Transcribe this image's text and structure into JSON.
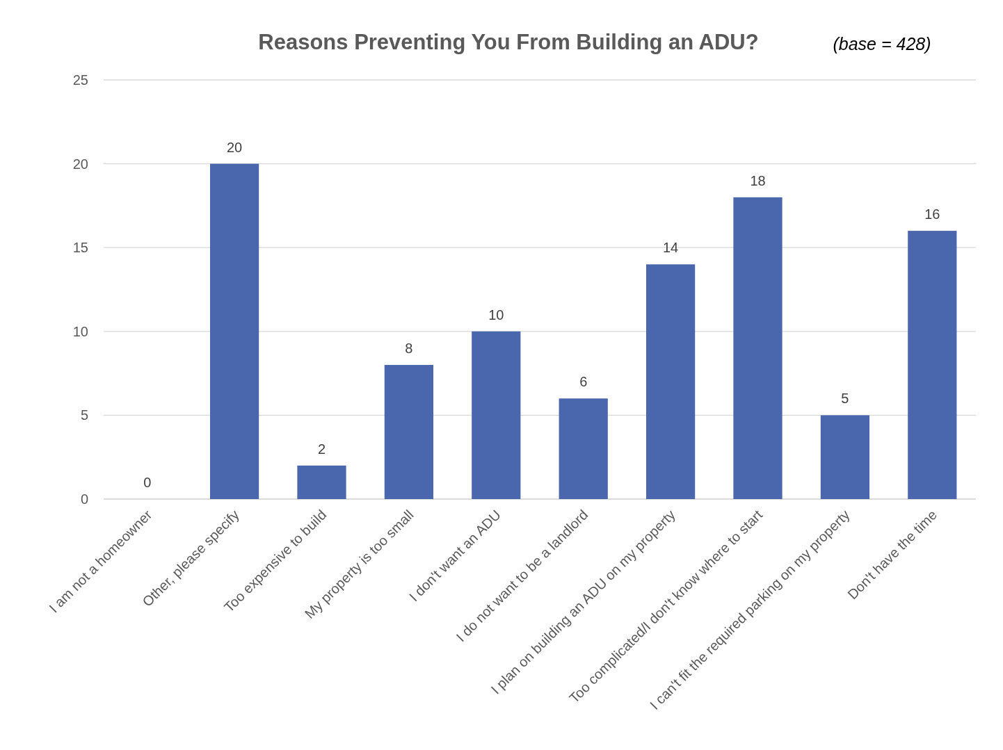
{
  "chart_data": {
    "type": "bar",
    "title": "Reasons Preventing You From Building an ADU?",
    "annotations": [
      "(base = 428)"
    ],
    "categories": [
      "I am not a homeowner",
      "Other, please specify",
      "Too expensive to build",
      "My property is too small",
      "I don't want an ADU",
      "I do not want to be a landlord",
      "I plan on building an ADU on my property",
      "Too complicated/I don't know where to start",
      "I can't fit the required parking on my property",
      "Don't have the time"
    ],
    "values": [
      0,
      20,
      2,
      8,
      10,
      6,
      14,
      18,
      5,
      16
    ],
    "color": "#4a66ad",
    "ylim": [
      0,
      25
    ],
    "yticks": [
      0,
      5,
      10,
      15,
      20,
      25
    ],
    "grid": "y",
    "data_labels": true
  }
}
